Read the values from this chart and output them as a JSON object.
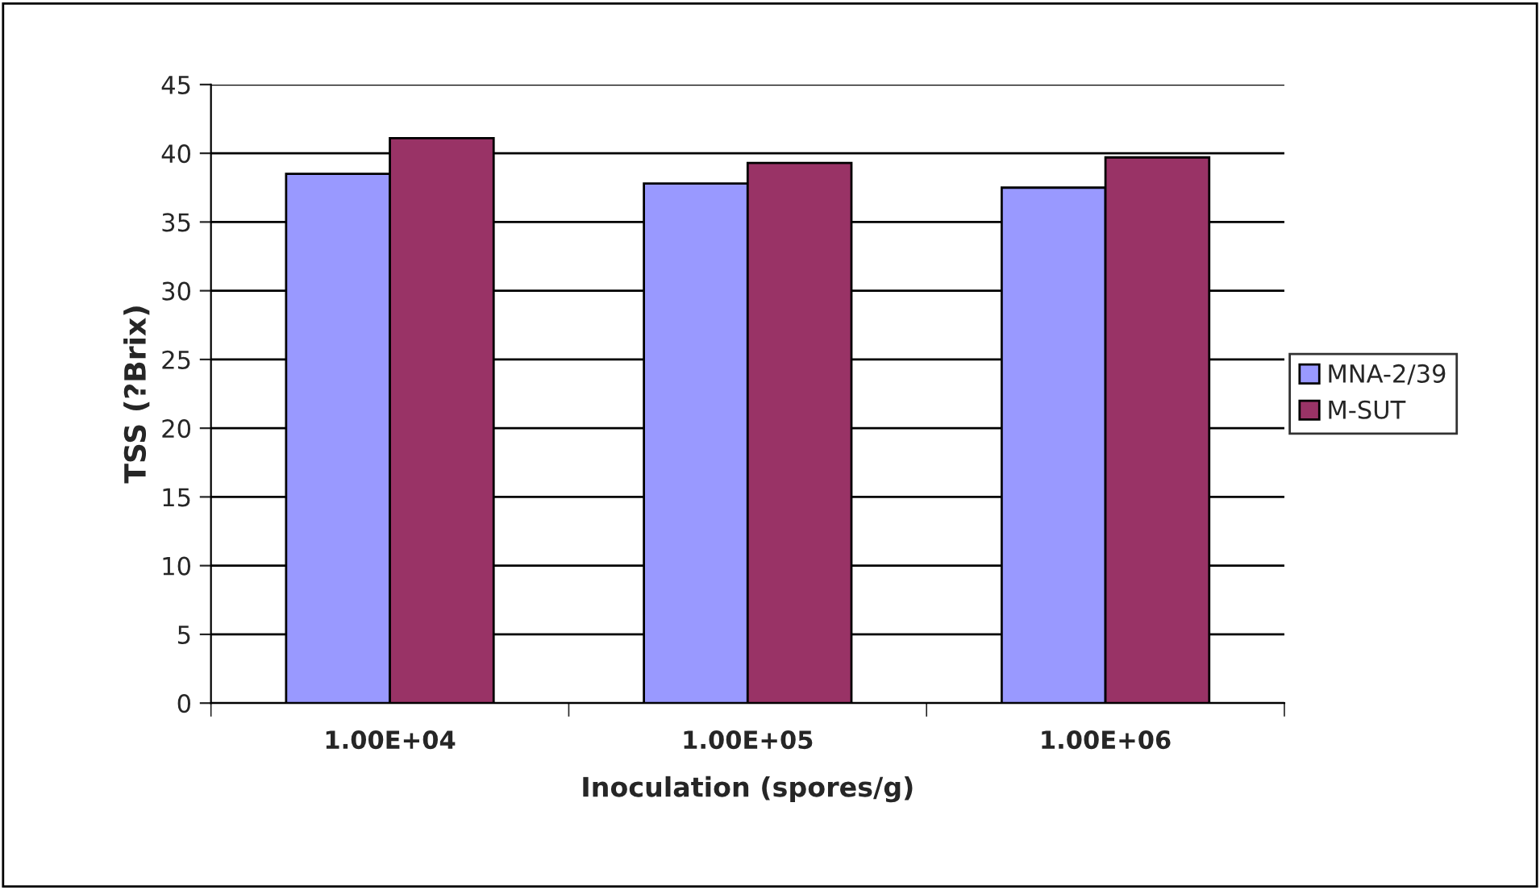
{
  "chart_data": {
    "type": "bar",
    "xlabel": "Inoculation (spores/g)",
    "ylabel": "TSS (?Brix)",
    "categories": [
      "1.00E+04",
      "1.00E+05",
      "1.00E+06"
    ],
    "series": [
      {
        "name": "MNA-2/39",
        "color": "#9999ff",
        "values": [
          38.5,
          37.8,
          37.5
        ]
      },
      {
        "name": "M-SUT",
        "color": "#993366",
        "values": [
          41.1,
          39.3,
          39.7
        ]
      }
    ],
    "ylim": [
      0,
      45
    ],
    "yticks": [
      0,
      5,
      10,
      15,
      20,
      25,
      30,
      35,
      40,
      45
    ],
    "grid": "y",
    "legend": "right"
  }
}
